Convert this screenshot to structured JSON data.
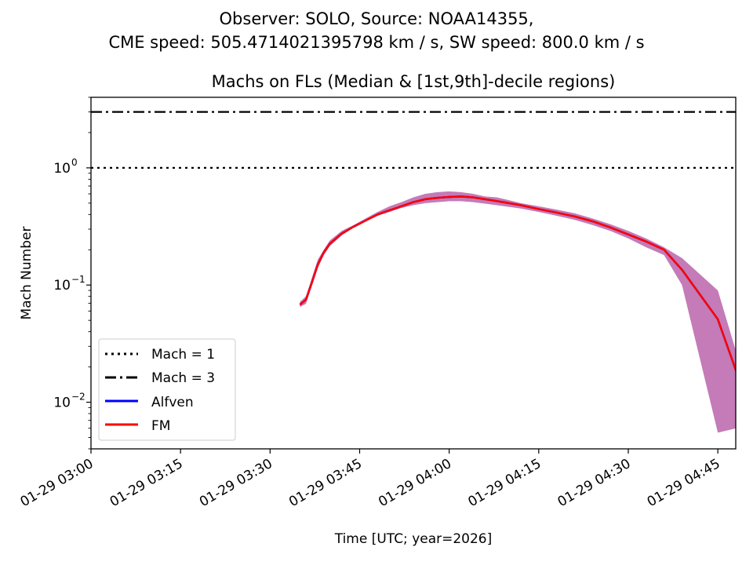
{
  "figure": {
    "suptitle_lines": [
      "Observer: SOLO, Source: NOAA14355,",
      "CME speed: 505.4714021395798 km / s, SW speed: 800.0 km / s"
    ]
  },
  "chart_data": {
    "type": "line",
    "title": "Machs on FLs (Median & [1st,9th]-decile regions)",
    "xlabel": "Time [UTC; year=2026]",
    "ylabel": "Mach Number",
    "yscale": "log",
    "ylim": [
      0.004,
      4.0
    ],
    "xlim": [
      "2026-01-29 03:00",
      "2026-01-29 04:48"
    ],
    "x_ticks": [
      "01-29 03:00",
      "01-29 03:15",
      "01-29 03:30",
      "01-29 03:45",
      "01-29 04:00",
      "01-29 04:15",
      "01-29 04:30",
      "01-29 04:45"
    ],
    "y_ticks": [
      {
        "value": 0.01,
        "base": "10",
        "exp": "−2"
      },
      {
        "value": 0.1,
        "base": "10",
        "exp": "−1"
      },
      {
        "value": 1,
        "base": "10",
        "exp": "0"
      }
    ],
    "grid": false,
    "legend_position": "lower-left",
    "reference_lines": [
      {
        "name": "Mach = 1",
        "y": 1,
        "style": "dotted",
        "color": "#000000"
      },
      {
        "name": "Mach = 3",
        "y": 3,
        "style": "dashdot",
        "color": "#000000"
      }
    ],
    "band": {
      "color": "#c47bb7",
      "x": [
        "03:35",
        "03:36",
        "03:37",
        "03:38",
        "03:39",
        "03:40",
        "03:42",
        "03:44",
        "03:46",
        "03:48",
        "03:50",
        "03:52",
        "03:54",
        "03:56",
        "03:58",
        "04:00",
        "04:02",
        "04:04",
        "04:06",
        "04:08",
        "04:10",
        "04:12",
        "04:15",
        "04:18",
        "04:21",
        "04:24",
        "04:27",
        "04:30",
        "04:33",
        "04:36",
        "04:39",
        "04:45",
        "04:51"
      ],
      "lower": [
        0.065,
        0.069,
        0.098,
        0.14,
        0.18,
        0.215,
        0.265,
        0.31,
        0.35,
        0.39,
        0.42,
        0.455,
        0.48,
        0.5,
        0.51,
        0.52,
        0.52,
        0.51,
        0.495,
        0.48,
        0.465,
        0.45,
        0.42,
        0.39,
        0.36,
        0.325,
        0.29,
        0.25,
        0.21,
        0.18,
        0.1,
        0.0055,
        0.0065
      ],
      "upper": [
        0.072,
        0.08,
        0.115,
        0.165,
        0.2,
        0.24,
        0.29,
        0.325,
        0.37,
        0.42,
        0.47,
        0.51,
        0.56,
        0.6,
        0.62,
        0.63,
        0.62,
        0.6,
        0.57,
        0.56,
        0.53,
        0.5,
        0.47,
        0.44,
        0.41,
        0.37,
        0.33,
        0.29,
        0.25,
        0.21,
        0.17,
        0.09,
        0.0085
      ]
    },
    "series": [
      {
        "name": "Alfven",
        "color": "#0000ff",
        "x": [
          "03:35",
          "03:36",
          "03:37",
          "03:38",
          "03:39",
          "03:40",
          "03:42",
          "03:44",
          "03:46",
          "03:48",
          "03:50",
          "03:52",
          "03:54",
          "03:56",
          "03:58",
          "04:00",
          "04:02",
          "04:04",
          "04:06",
          "04:08",
          "04:10",
          "04:12",
          "04:15",
          "04:18",
          "04:21",
          "04:24",
          "04:27",
          "04:30",
          "04:33",
          "04:36",
          "04:39",
          "04:45",
          "04:51"
        ],
        "values": [
          0.068,
          0.075,
          0.105,
          0.15,
          0.19,
          0.225,
          0.275,
          0.315,
          0.355,
          0.4,
          0.435,
          0.47,
          0.51,
          0.54,
          0.555,
          0.565,
          0.57,
          0.56,
          0.54,
          0.52,
          0.5,
          0.48,
          0.445,
          0.415,
          0.385,
          0.35,
          0.31,
          0.27,
          0.235,
          0.2,
          0.135,
          0.051,
          0.007
        ]
      },
      {
        "name": "FM",
        "color": "#ff0000",
        "x": [
          "03:35",
          "03:36",
          "03:37",
          "03:38",
          "03:39",
          "03:40",
          "03:42",
          "03:44",
          "03:46",
          "03:48",
          "03:50",
          "03:52",
          "03:54",
          "03:56",
          "03:58",
          "04:00",
          "04:02",
          "04:04",
          "04:06",
          "04:08",
          "04:10",
          "04:12",
          "04:15",
          "04:18",
          "04:21",
          "04:24",
          "04:27",
          "04:30",
          "04:33",
          "04:36",
          "04:39",
          "04:45",
          "04:51"
        ],
        "values": [
          0.068,
          0.075,
          0.105,
          0.15,
          0.19,
          0.225,
          0.275,
          0.315,
          0.355,
          0.4,
          0.435,
          0.47,
          0.51,
          0.54,
          0.555,
          0.565,
          0.57,
          0.56,
          0.54,
          0.52,
          0.5,
          0.48,
          0.445,
          0.415,
          0.385,
          0.35,
          0.31,
          0.27,
          0.235,
          0.2,
          0.135,
          0.051,
          0.007
        ]
      }
    ],
    "legend": [
      "Mach = 1",
      "Mach = 3",
      "Alfven",
      "FM"
    ]
  }
}
